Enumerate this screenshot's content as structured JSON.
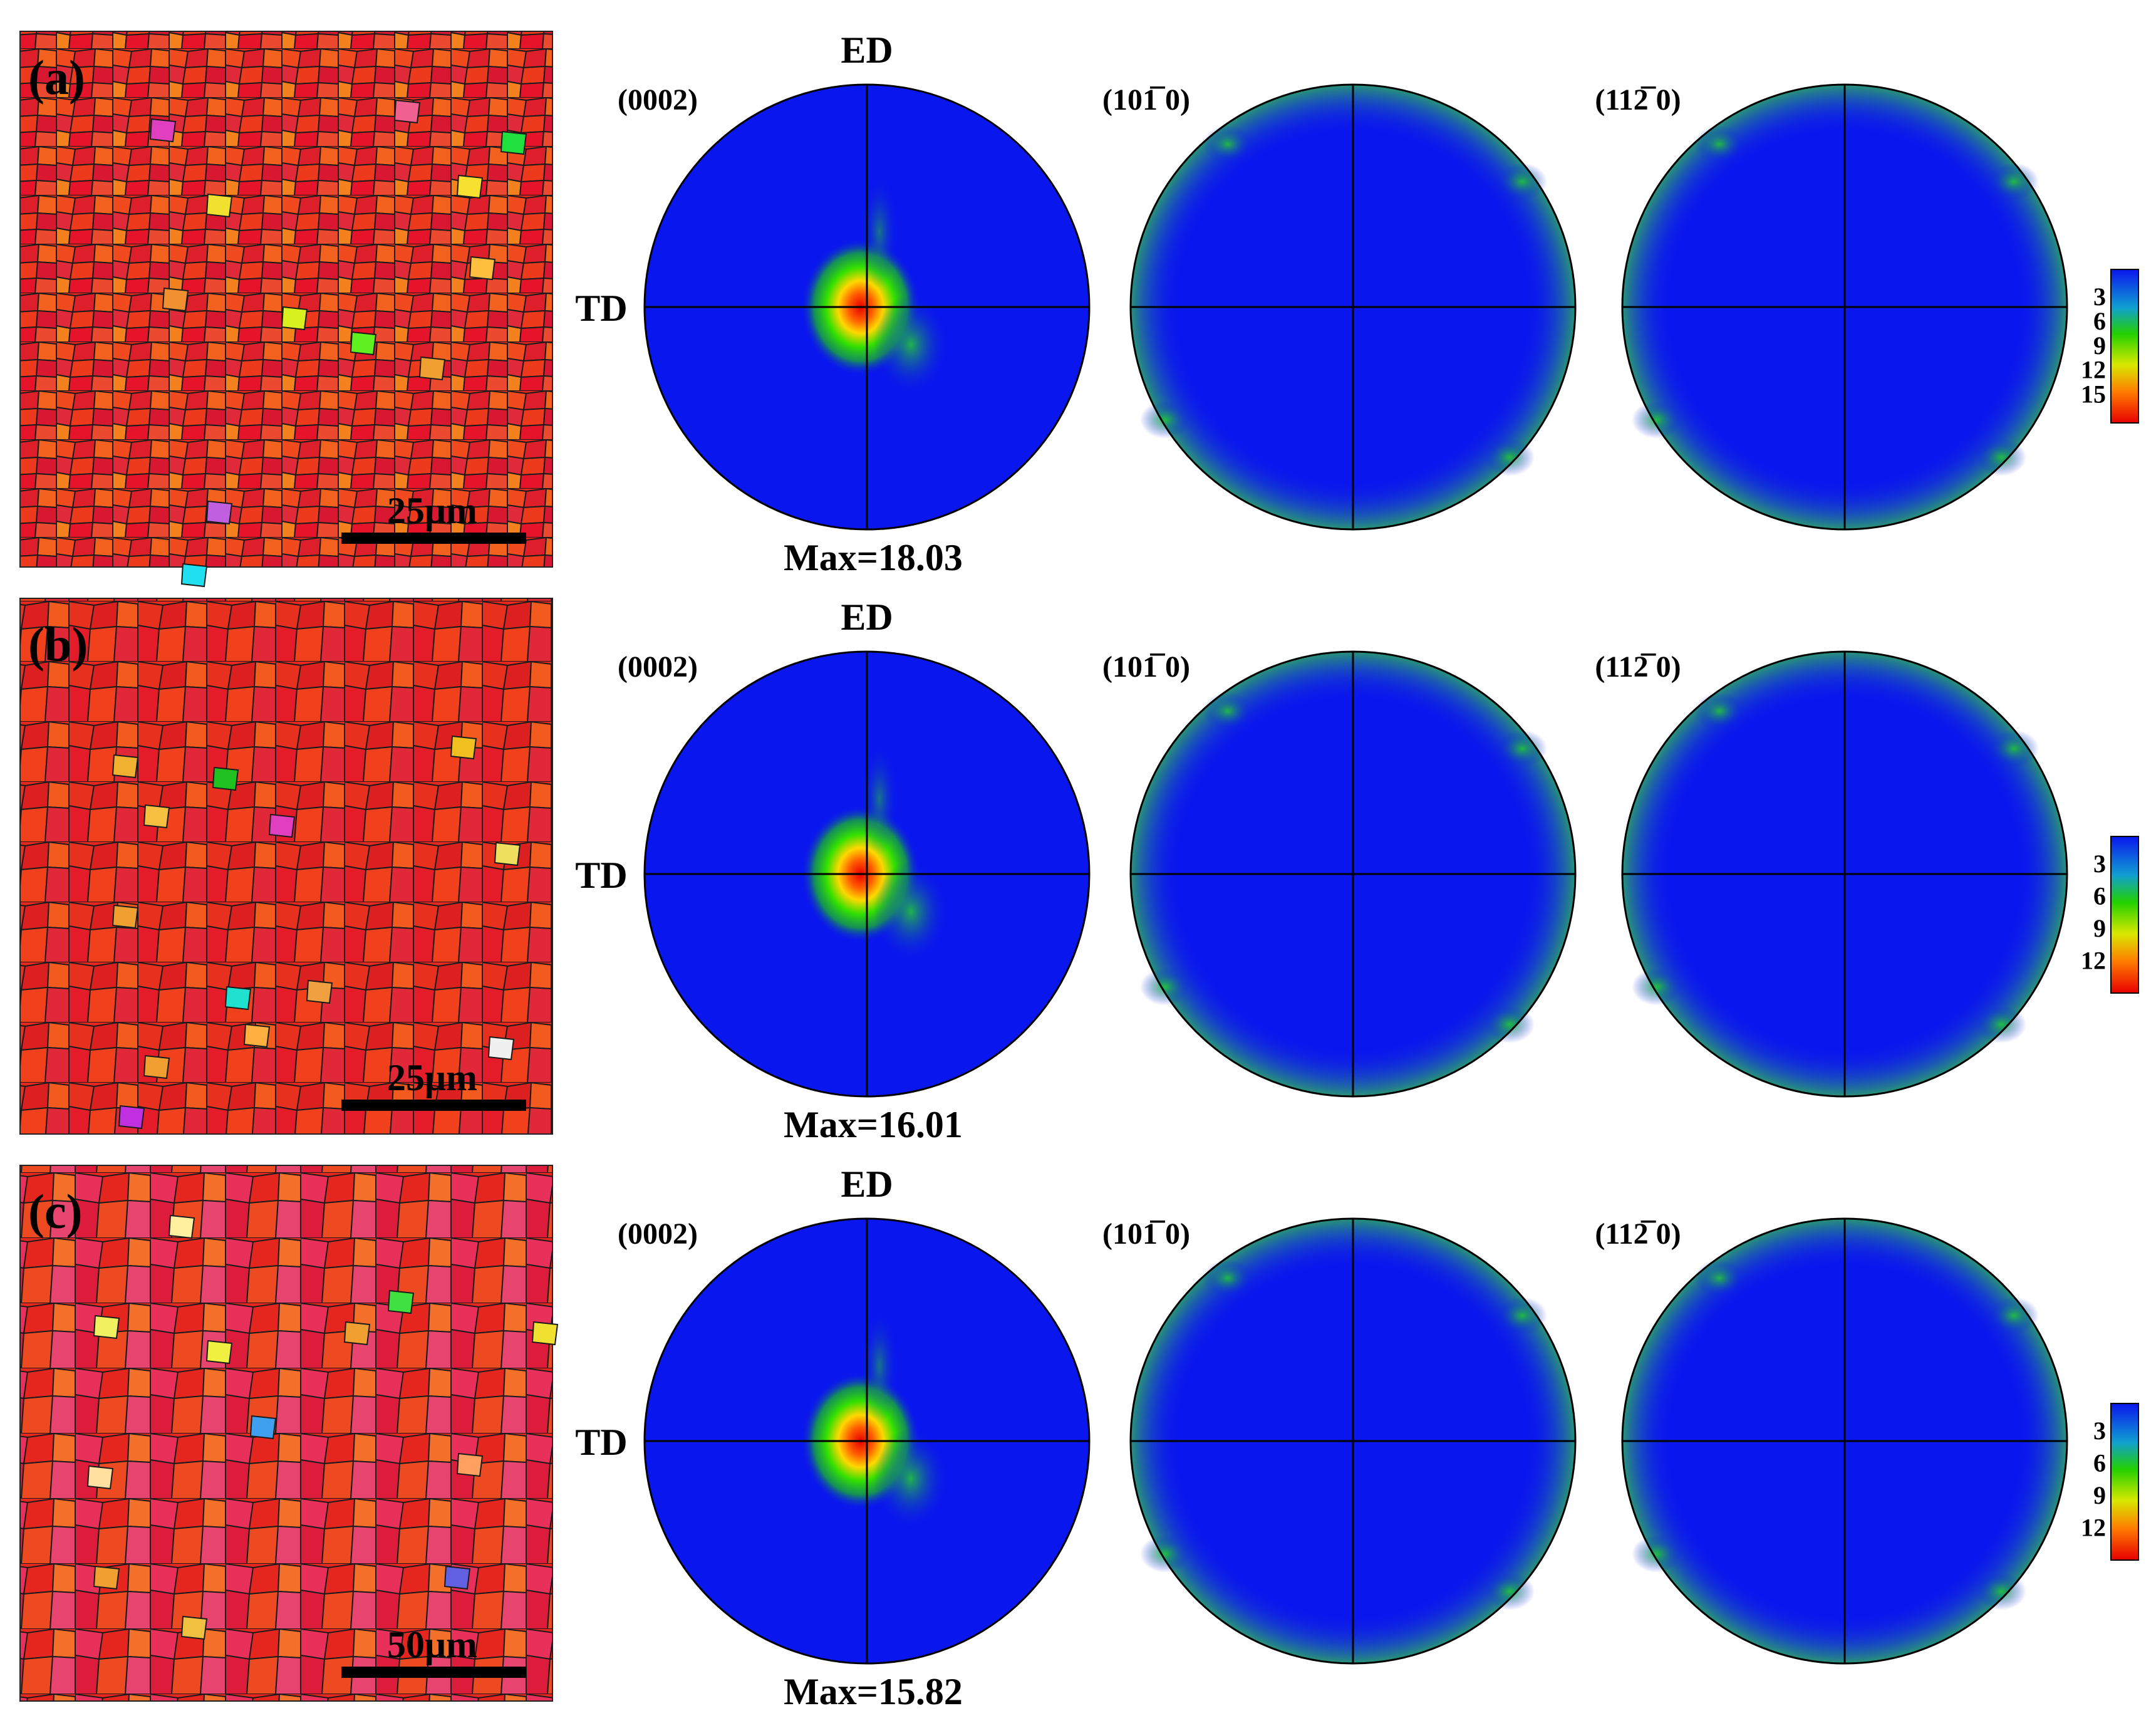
{
  "figure": {
    "rows": [
      {
        "panel_label": "(a)",
        "scale_bar": "25μm",
        "pole_figure_titles": [
          "(0002)",
          "(101̅ 0)",
          "(112̅ 0)"
        ],
        "axis_top": "ED",
        "axis_left": "TD",
        "max_label": "Max=18.03",
        "colorbar_ticks": [
          "3",
          "6",
          "9",
          "12",
          "15"
        ]
      },
      {
        "panel_label": "(b)",
        "scale_bar": "25μm",
        "pole_figure_titles": [
          "(0002)",
          "(101̅ 0)",
          "(112̅ 0)"
        ],
        "axis_top": "ED",
        "axis_left": "TD",
        "max_label": "Max=16.01",
        "colorbar_ticks": [
          "3",
          "6",
          "9",
          "12"
        ]
      },
      {
        "panel_label": "(c)",
        "scale_bar": "50μm",
        "pole_figure_titles": [
          "(0002)",
          "(101̅ 0)",
          "(112̅ 0)"
        ],
        "axis_top": "ED",
        "axis_left": "TD",
        "max_label": "Max=15.82",
        "colorbar_ticks": [
          "3",
          "6",
          "9",
          "12"
        ]
      }
    ],
    "colors": {
      "pf_background": "#0a16ee",
      "pf_rim": "#2a8a9a",
      "grain_base": "#e8281e",
      "grain_boundary": "#1a1a1a"
    }
  }
}
